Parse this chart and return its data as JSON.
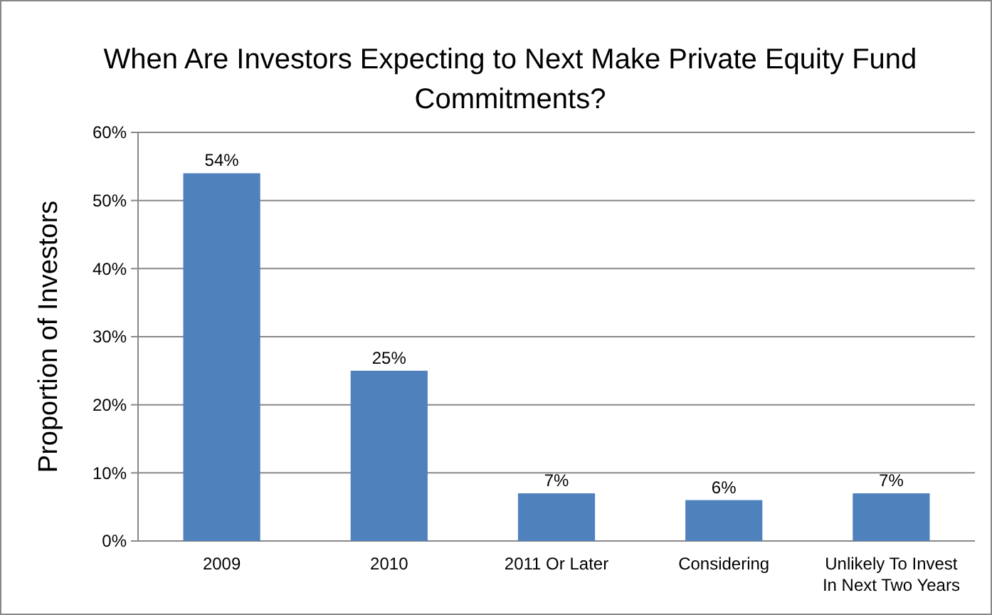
{
  "chart_data": {
    "type": "bar",
    "title": "When Are Investors Expecting to Next Make Private Equity Fund Commitments?",
    "ylabel": "Proportion of Investors",
    "categories": [
      "2009",
      "2010",
      "2011 Or Later",
      "Considering",
      "Unlikely To Invest In Next Two Years"
    ],
    "values": [
      54,
      25,
      7,
      6,
      7
    ],
    "color": "#4f81bd",
    "value_labels": [
      "54%",
      "25%",
      "7%",
      "6%",
      "7%"
    ],
    "ylim": [
      0,
      60
    ],
    "yticks": [
      {
        "value": 0,
        "label": "0%"
      },
      {
        "value": 10,
        "label": "10%"
      },
      {
        "value": 20,
        "label": "20%"
      },
      {
        "value": 30,
        "label": "30%"
      },
      {
        "value": 40,
        "label": "40%"
      },
      {
        "value": 50,
        "label": "50%"
      },
      {
        "value": 60,
        "label": "60%"
      }
    ],
    "grid": "y"
  }
}
